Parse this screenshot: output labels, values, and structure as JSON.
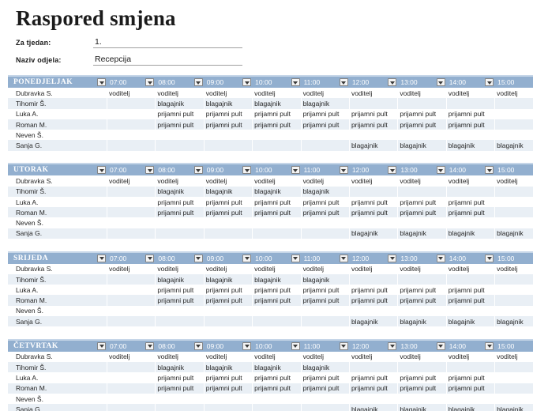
{
  "title": "Raspored smjena",
  "fields": {
    "week": {
      "label": "Za tjedan:",
      "value": "1."
    },
    "department": {
      "label": "Naziv odjela:",
      "value": "Recepcija"
    }
  },
  "table": {
    "days": [
      "PONEDJELJAK",
      "UTORAK",
      "SRIJEDA",
      "ČETVRTAK"
    ],
    "times": [
      "07:00",
      "08:00",
      "09:00",
      "10:00",
      "11:00",
      "12:00",
      "13:00",
      "14:00",
      "15:00"
    ],
    "roster": [
      {
        "name": "Dubravka S.",
        "shifts": [
          "voditelj",
          "voditelj",
          "voditelj",
          "voditelj",
          "voditelj",
          "voditelj",
          "voditelj",
          "voditelj",
          "voditelj"
        ]
      },
      {
        "name": "Tihomir Š.",
        "shifts": [
          "",
          "blagajnik",
          "blagajnik",
          "blagajnik",
          "blagajnik",
          "",
          "",
          "",
          ""
        ]
      },
      {
        "name": "Luka A.",
        "shifts": [
          "",
          "prijamni pult",
          "prijamni pult",
          "prijamni pult",
          "prijamni pult",
          "prijamni pult",
          "prijamni pult",
          "prijamni pult",
          ""
        ]
      },
      {
        "name": "Roman M.",
        "shifts": [
          "",
          "prijamni pult",
          "prijamni pult",
          "prijamni pult",
          "prijamni pult",
          "prijamni pult",
          "prijamni pult",
          "prijamni pult",
          ""
        ]
      },
      {
        "name": "Neven Š.",
        "shifts": [
          "",
          "",
          "",
          "",
          "",
          "",
          "",
          "",
          ""
        ]
      },
      {
        "name": "Sanja G.",
        "shifts": [
          "",
          "",
          "",
          "",
          "",
          "blagajnik",
          "blagajnik",
          "blagajnik",
          "blagajnik"
        ]
      }
    ]
  },
  "colors": {
    "header_bg": "#92AFCF",
    "header_top_line": "#C6D6E8",
    "header_text": "#FFFFFF",
    "band_row": "#E9EFF5",
    "field_underline": "#A0A0A0"
  }
}
